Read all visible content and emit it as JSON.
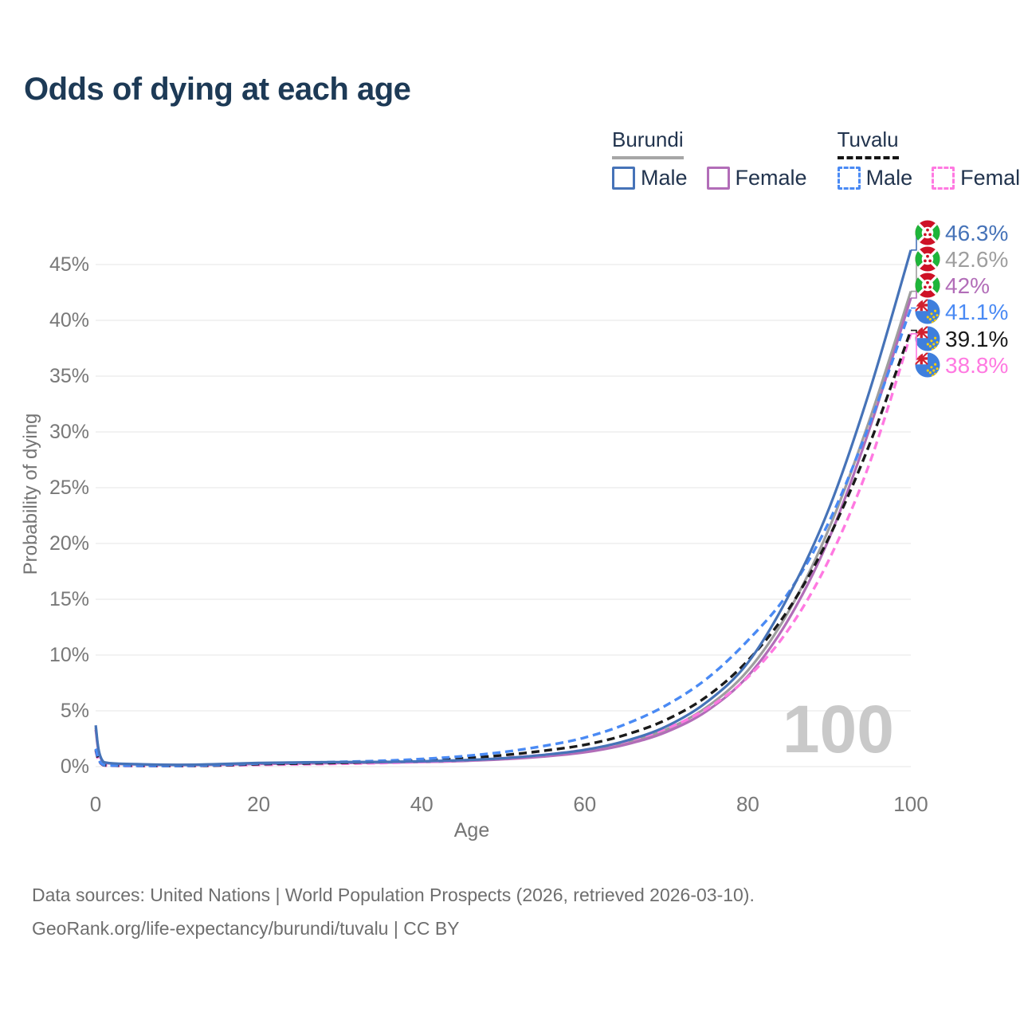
{
  "page": {
    "title": "Odds of dying at each age"
  },
  "legend": {
    "groups": [
      {
        "label": "Burundi",
        "underline_style": "solid",
        "underline_color": "#a6a6a6",
        "items": [
          {
            "label": "Male",
            "color": "#4673b8",
            "style": "solid"
          },
          {
            "label": "Female",
            "color": "#b26db8",
            "style": "solid"
          }
        ]
      },
      {
        "label": "Tuvalu",
        "underline_style": "dashed",
        "underline_color": "#151515",
        "items": [
          {
            "label": "Male",
            "color": "#4a8af4",
            "style": "dashed"
          },
          {
            "label": "Female",
            "color": "#ff79e1",
            "style": "dashed"
          }
        ]
      }
    ]
  },
  "footer": {
    "line1": "Data sources: United Nations | World Population Prospects (2026, retrieved 2026-03-10).",
    "line2": "GeoRank.org/life-expectancy/burundi/tuvalu | CC BY"
  },
  "chart_data": {
    "type": "line",
    "title": "Odds of dying at each age",
    "xlabel": "Age",
    "ylabel": "Probability of dying",
    "xlim": [
      0,
      100
    ],
    "ylim": [
      0,
      47.5
    ],
    "x_ticks": [
      0,
      20,
      40,
      60,
      80,
      100
    ],
    "y_ticks": [
      0,
      5,
      10,
      15,
      20,
      25,
      30,
      35,
      40,
      45
    ],
    "grid": "horizontal",
    "legend_position": "top-right",
    "watermark": "100",
    "x": [
      0,
      1,
      5,
      10,
      15,
      20,
      25,
      30,
      35,
      40,
      45,
      50,
      55,
      60,
      65,
      70,
      75,
      80,
      85,
      90,
      95,
      100
    ],
    "series": [
      {
        "name": "Burundi",
        "country": "Burundi",
        "sex": "Both sexes",
        "flag": "burundi",
        "color": "#9e9e9e",
        "dash": "solid",
        "end_label": "42.6%",
        "values": [
          3.5,
          0.38,
          0.21,
          0.15,
          0.19,
          0.28,
          0.33,
          0.36,
          0.39,
          0.44,
          0.53,
          0.7,
          0.97,
          1.38,
          2.12,
          3.32,
          5.35,
          8.6,
          13.9,
          21.4,
          31.2,
          42.6
        ]
      },
      {
        "name": "Burundi Female",
        "country": "Burundi",
        "sex": "Female",
        "flag": "burundi",
        "color": "#b26db8",
        "dash": "solid",
        "end_label": "42%",
        "values": [
          3.3,
          0.36,
          0.2,
          0.14,
          0.17,
          0.24,
          0.28,
          0.32,
          0.36,
          0.41,
          0.5,
          0.66,
          0.9,
          1.28,
          1.97,
          3.1,
          5.0,
          8.1,
          13.2,
          20.5,
          30.4,
          42.0
        ]
      },
      {
        "name": "Tuvalu Female",
        "country": "Tuvalu",
        "sex": "Female",
        "flag": "tuvalu",
        "color": "#ff79e1",
        "dash": "dashed",
        "end_label": "38.8%",
        "values": [
          1.4,
          0.11,
          0.06,
          0.05,
          0.09,
          0.16,
          0.21,
          0.26,
          0.32,
          0.42,
          0.55,
          0.76,
          1.05,
          1.5,
          2.25,
          3.4,
          5.2,
          8.0,
          12.3,
          18.6,
          27.3,
          38.8
        ]
      },
      {
        "name": "Tuvalu",
        "country": "Tuvalu",
        "sex": "Both sexes",
        "flag": "tuvalu",
        "color": "#1a1a1a",
        "dash": "dashed",
        "end_label": "39.1%",
        "values": [
          1.5,
          0.12,
          0.07,
          0.06,
          0.11,
          0.22,
          0.28,
          0.34,
          0.43,
          0.55,
          0.74,
          1.02,
          1.42,
          1.95,
          2.85,
          4.2,
          6.3,
          9.5,
          14.1,
          20.6,
          29.0,
          39.1
        ]
      },
      {
        "name": "Tuvalu Male",
        "country": "Tuvalu",
        "sex": "Male",
        "flag": "tuvalu",
        "color": "#4a8af4",
        "dash": "dashed",
        "end_label": "41.1%",
        "values": [
          1.6,
          0.14,
          0.08,
          0.07,
          0.14,
          0.28,
          0.35,
          0.42,
          0.52,
          0.68,
          0.93,
          1.3,
          1.85,
          2.6,
          3.8,
          5.5,
          7.9,
          11.3,
          15.6,
          22.0,
          30.8,
          41.1
        ]
      },
      {
        "name": "Burundi Male",
        "country": "Burundi",
        "sex": "Male",
        "flag": "burundi",
        "color": "#4673b8",
        "dash": "solid",
        "end_label": "46.3%",
        "values": [
          3.7,
          0.4,
          0.22,
          0.16,
          0.22,
          0.33,
          0.38,
          0.4,
          0.42,
          0.47,
          0.57,
          0.75,
          1.05,
          1.5,
          2.3,
          3.6,
          5.8,
          9.3,
          15.3,
          23.2,
          33.8,
          46.3
        ]
      }
    ]
  }
}
